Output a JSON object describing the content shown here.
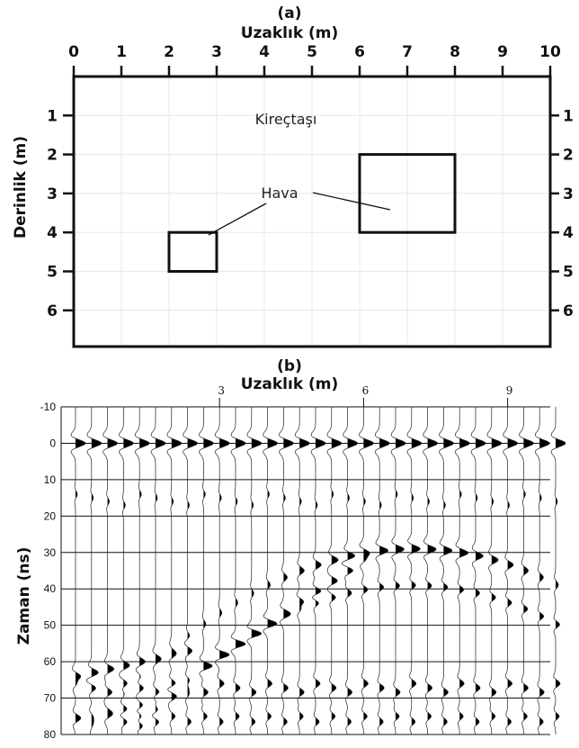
{
  "panel_a": {
    "label": "(a)",
    "x_title": "Uzaklık (m)",
    "y_title": "Derinlik (m)",
    "x_ticks": [
      "0",
      "1",
      "2",
      "3",
      "4",
      "5",
      "6",
      "7",
      "8",
      "9",
      "10"
    ],
    "y_ticks": [
      "1",
      "2",
      "3",
      "4",
      "5",
      "6"
    ],
    "limestone_label": "Kireçtaşı",
    "air_label": "Hava",
    "x_range": [
      0,
      10
    ],
    "y_range": [
      0,
      7
    ],
    "cavities": [
      {
        "x": [
          2,
          3
        ],
        "depth": [
          4,
          5
        ]
      },
      {
        "x": [
          6,
          8
        ],
        "depth": [
          2,
          4
        ]
      }
    ]
  },
  "panel_b": {
    "label": "(b)",
    "x_title": "Uzaklık (m)",
    "y_title": "Zaman (ns)",
    "x_tick_labels": [
      "3",
      "6",
      "9"
    ],
    "x_tick_values": [
      3,
      6,
      9
    ],
    "y_ticks": [
      "-10",
      "0",
      "10",
      "20",
      "30",
      "40",
      "50",
      "60",
      "70",
      "80"
    ],
    "x_range": [
      0,
      10
    ],
    "y_range": [
      -10,
      80
    ],
    "trace_count": 31,
    "direct_wave_time": 0,
    "cavity_reflection": {
      "x_range": [
        6,
        8
      ],
      "time": 29
    },
    "side_wall_events": [
      {
        "from_x": 0,
        "to_x": 2,
        "time_start": 64,
        "time_end": 58
      },
      {
        "from_x": 3,
        "to_x": 6,
        "time_start": 58,
        "time_end": 32
      }
    ]
  }
}
